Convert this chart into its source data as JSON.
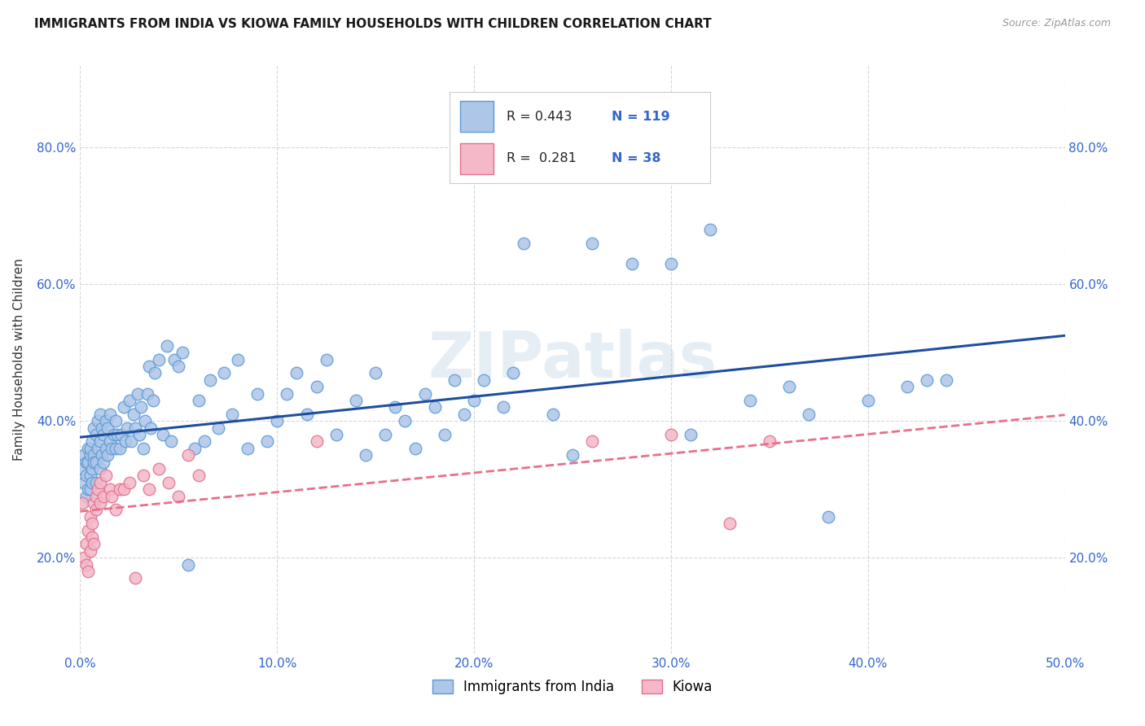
{
  "title": "IMMIGRANTS FROM INDIA VS KIOWA FAMILY HOUSEHOLDS WITH CHILDREN CORRELATION CHART",
  "source": "Source: ZipAtlas.com",
  "ylabel": "Family Households with Children",
  "xlim": [
    0.0,
    0.5
  ],
  "ylim": [
    0.06,
    0.92
  ],
  "xtick_labels": [
    "0.0%",
    "10.0%",
    "20.0%",
    "30.0%",
    "40.0%",
    "50.0%"
  ],
  "xtick_vals": [
    0.0,
    0.1,
    0.2,
    0.3,
    0.4,
    0.5
  ],
  "ytick_labels": [
    "20.0%",
    "40.0%",
    "60.0%",
    "80.0%"
  ],
  "ytick_vals": [
    0.2,
    0.4,
    0.6,
    0.8
  ],
  "india_color": "#aec6e8",
  "india_edge_color": "#5b9bd5",
  "kiowa_color": "#f4b8c8",
  "kiowa_edge_color": "#e07090",
  "india_line_color": "#1f4e9e",
  "kiowa_line_color": "#e8708a",
  "r_india": 0.443,
  "n_india": 119,
  "r_kiowa": 0.281,
  "n_kiowa": 38,
  "watermark": "ZIPatlas",
  "legend_label_india": "Immigrants from India",
  "legend_label_kiowa": "Kiowa",
  "india_x": [
    0.001,
    0.002,
    0.002,
    0.003,
    0.003,
    0.003,
    0.004,
    0.004,
    0.004,
    0.005,
    0.005,
    0.005,
    0.005,
    0.006,
    0.006,
    0.006,
    0.007,
    0.007,
    0.007,
    0.008,
    0.008,
    0.008,
    0.009,
    0.009,
    0.01,
    0.01,
    0.01,
    0.011,
    0.011,
    0.012,
    0.012,
    0.013,
    0.013,
    0.014,
    0.014,
    0.015,
    0.015,
    0.016,
    0.017,
    0.018,
    0.018,
    0.019,
    0.02,
    0.021,
    0.022,
    0.023,
    0.024,
    0.025,
    0.026,
    0.027,
    0.028,
    0.029,
    0.03,
    0.031,
    0.032,
    0.033,
    0.034,
    0.035,
    0.036,
    0.037,
    0.038,
    0.04,
    0.042,
    0.044,
    0.046,
    0.048,
    0.05,
    0.052,
    0.055,
    0.058,
    0.06,
    0.063,
    0.066,
    0.07,
    0.073,
    0.077,
    0.08,
    0.085,
    0.09,
    0.095,
    0.1,
    0.105,
    0.11,
    0.115,
    0.12,
    0.125,
    0.13,
    0.14,
    0.15,
    0.16,
    0.17,
    0.18,
    0.19,
    0.2,
    0.22,
    0.24,
    0.26,
    0.28,
    0.3,
    0.32,
    0.34,
    0.36,
    0.38,
    0.4,
    0.42,
    0.44,
    0.25,
    0.31,
    0.37,
    0.43,
    0.145,
    0.155,
    0.165,
    0.175,
    0.185,
    0.195,
    0.205,
    0.215,
    0.225
  ],
  "india_y": [
    0.33,
    0.31,
    0.35,
    0.29,
    0.34,
    0.32,
    0.36,
    0.3,
    0.34,
    0.32,
    0.35,
    0.3,
    0.36,
    0.33,
    0.37,
    0.31,
    0.35,
    0.39,
    0.34,
    0.31,
    0.34,
    0.38,
    0.36,
    0.4,
    0.33,
    0.37,
    0.41,
    0.35,
    0.39,
    0.34,
    0.38,
    0.36,
    0.4,
    0.35,
    0.39,
    0.37,
    0.41,
    0.36,
    0.38,
    0.36,
    0.4,
    0.38,
    0.36,
    0.38,
    0.42,
    0.37,
    0.39,
    0.43,
    0.37,
    0.41,
    0.39,
    0.44,
    0.38,
    0.42,
    0.36,
    0.4,
    0.44,
    0.48,
    0.39,
    0.43,
    0.47,
    0.49,
    0.38,
    0.51,
    0.37,
    0.49,
    0.48,
    0.5,
    0.19,
    0.36,
    0.43,
    0.37,
    0.46,
    0.39,
    0.47,
    0.41,
    0.49,
    0.36,
    0.44,
    0.37,
    0.4,
    0.44,
    0.47,
    0.41,
    0.45,
    0.49,
    0.38,
    0.43,
    0.47,
    0.42,
    0.36,
    0.42,
    0.46,
    0.43,
    0.47,
    0.41,
    0.66,
    0.63,
    0.63,
    0.68,
    0.43,
    0.45,
    0.26,
    0.43,
    0.45,
    0.46,
    0.35,
    0.38,
    0.41,
    0.46,
    0.35,
    0.38,
    0.4,
    0.44,
    0.38,
    0.41,
    0.46,
    0.42,
    0.66
  ],
  "kiowa_x": [
    0.001,
    0.002,
    0.003,
    0.003,
    0.004,
    0.004,
    0.005,
    0.005,
    0.006,
    0.006,
    0.007,
    0.007,
    0.008,
    0.008,
    0.009,
    0.01,
    0.01,
    0.012,
    0.013,
    0.015,
    0.016,
    0.018,
    0.02,
    0.022,
    0.025,
    0.028,
    0.032,
    0.035,
    0.04,
    0.045,
    0.05,
    0.055,
    0.06,
    0.12,
    0.26,
    0.3,
    0.33,
    0.35
  ],
  "kiowa_y": [
    0.28,
    0.2,
    0.22,
    0.19,
    0.24,
    0.18,
    0.26,
    0.21,
    0.25,
    0.23,
    0.28,
    0.22,
    0.29,
    0.27,
    0.3,
    0.28,
    0.31,
    0.29,
    0.32,
    0.3,
    0.29,
    0.27,
    0.3,
    0.3,
    0.31,
    0.17,
    0.32,
    0.3,
    0.33,
    0.31,
    0.29,
    0.35,
    0.32,
    0.37,
    0.37,
    0.38,
    0.25,
    0.37
  ]
}
